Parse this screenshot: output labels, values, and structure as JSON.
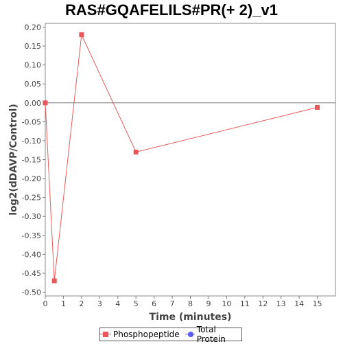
{
  "chart_data": {
    "type": "line",
    "title": "RAS#GQAFELILS#PR(+ 2)_v1",
    "xlabel": "Time (minutes)",
    "ylabel": "log2(dDAVP/Control)",
    "xlim": [
      0,
      16
    ],
    "ylim": [
      -0.51,
      0.21
    ],
    "xticks": [
      0,
      1,
      2,
      3,
      4,
      5,
      6,
      7,
      8,
      9,
      10,
      11,
      12,
      13,
      14,
      15
    ],
    "yticks": [
      0.2,
      0.15,
      0.1,
      0.05,
      0.0,
      -0.05,
      -0.1,
      -0.15,
      -0.2,
      -0.25,
      -0.3,
      -0.35,
      -0.4,
      -0.45,
      -0.5
    ],
    "ytick_labels": [
      "0.20",
      "0.15",
      "0.10",
      "0.05",
      "0.00",
      "-0.05",
      "-0.10",
      "-0.15",
      "-0.20",
      "-0.25",
      "-0.30",
      "-0.35",
      "-0.40",
      "-0.45",
      "-0.50"
    ],
    "series": [
      {
        "name": "Phosphopeptide",
        "color": "#e8585a",
        "marker": "square",
        "x": [
          0,
          0.5,
          2,
          5,
          15
        ],
        "y": [
          0.0,
          -0.47,
          0.18,
          -0.13,
          -0.012
        ]
      },
      {
        "name": "Total Protein",
        "color": "#5b5bf0",
        "marker": "circle",
        "x": [],
        "y": []
      }
    ],
    "zero_line": true,
    "grid": false,
    "legend_position": "bottom"
  }
}
